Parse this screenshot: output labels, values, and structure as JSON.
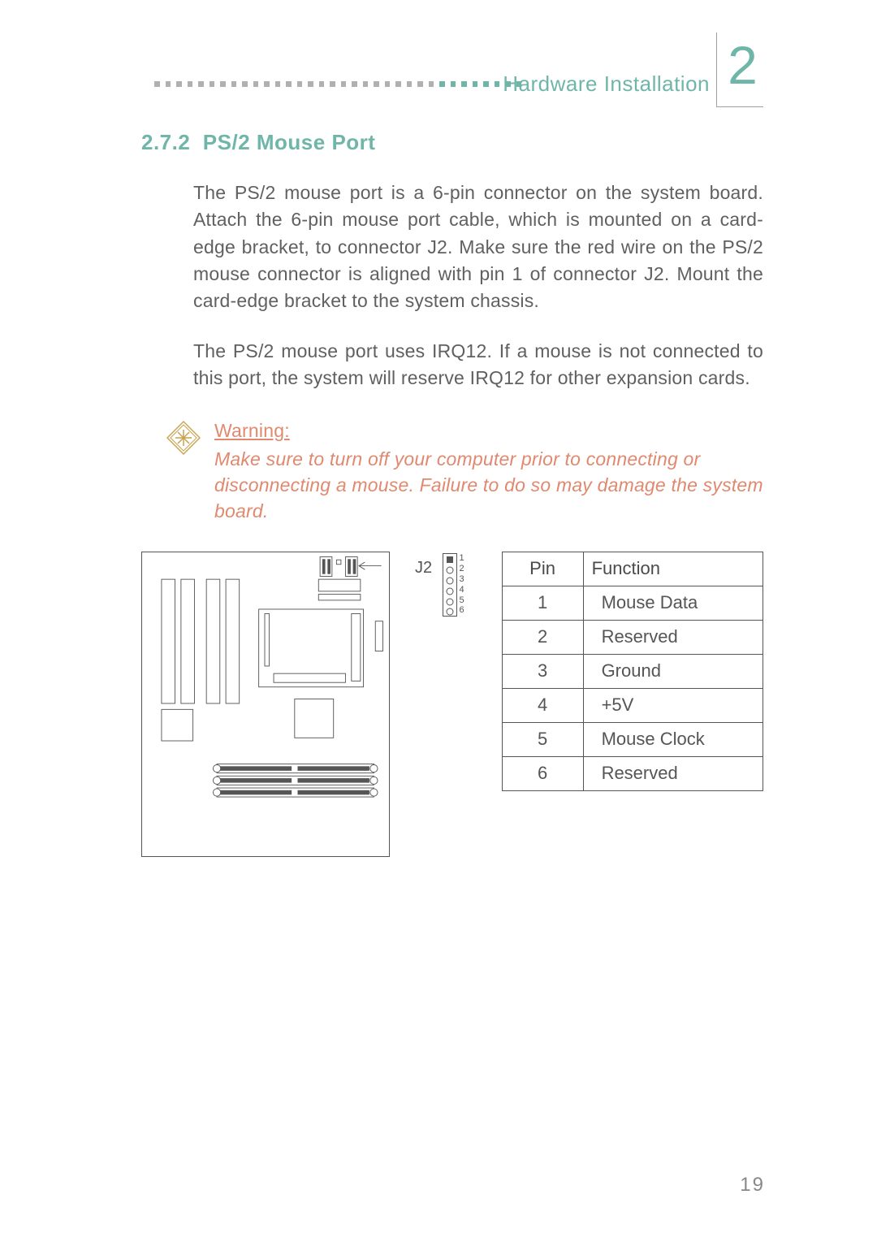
{
  "theme": {
    "body_text_color": "#606060",
    "heading_color": "#6fb6a9",
    "accent_teal": "#6fb6a9",
    "warn_orange": "#e0896f",
    "dot_gray": "#b0b0b0",
    "table_border": "#555555",
    "page_bg": "#ffffff"
  },
  "header": {
    "title": "Hardware Installation",
    "chapter_number": "2",
    "dot_count_teal": 8,
    "dot_count_gray": 26
  },
  "section": {
    "number": "2.7.2",
    "title": "PS/2 Mouse Port"
  },
  "paragraphs": {
    "p1": "The PS/2 mouse port is a 6-pin connector on the system board. Attach the 6-pin mouse port cable, which is mounted on a card-edge bracket, to connector J2. Make sure the red wire on the PS/2 mouse connector is aligned with pin 1 of connector J2. Mount the card-edge bracket to the system chassis.",
    "p2": "The PS/2 mouse port uses IRQ12. If a mouse is not connected to this port, the system will reserve IRQ12 for other expansion cards."
  },
  "warning": {
    "heading": "Warning:",
    "body": "Make sure to turn off your computer prior to connecting or disconnecting a mouse. Failure to do so may damage the system board."
  },
  "figure": {
    "connector_label": "J2",
    "pin_numbers": [
      "1",
      "2",
      "3",
      "4",
      "5",
      "6"
    ]
  },
  "pin_table": {
    "headers": {
      "pin": "Pin",
      "function": "Function"
    },
    "rows": [
      {
        "pin": "1",
        "function": "Mouse Data"
      },
      {
        "pin": "2",
        "function": "Reserved"
      },
      {
        "pin": "3",
        "function": "Ground"
      },
      {
        "pin": "4",
        "function": "+5V"
      },
      {
        "pin": "5",
        "function": "Mouse Clock"
      },
      {
        "pin": "6",
        "function": "Reserved"
      }
    ]
  },
  "page_number": "19"
}
